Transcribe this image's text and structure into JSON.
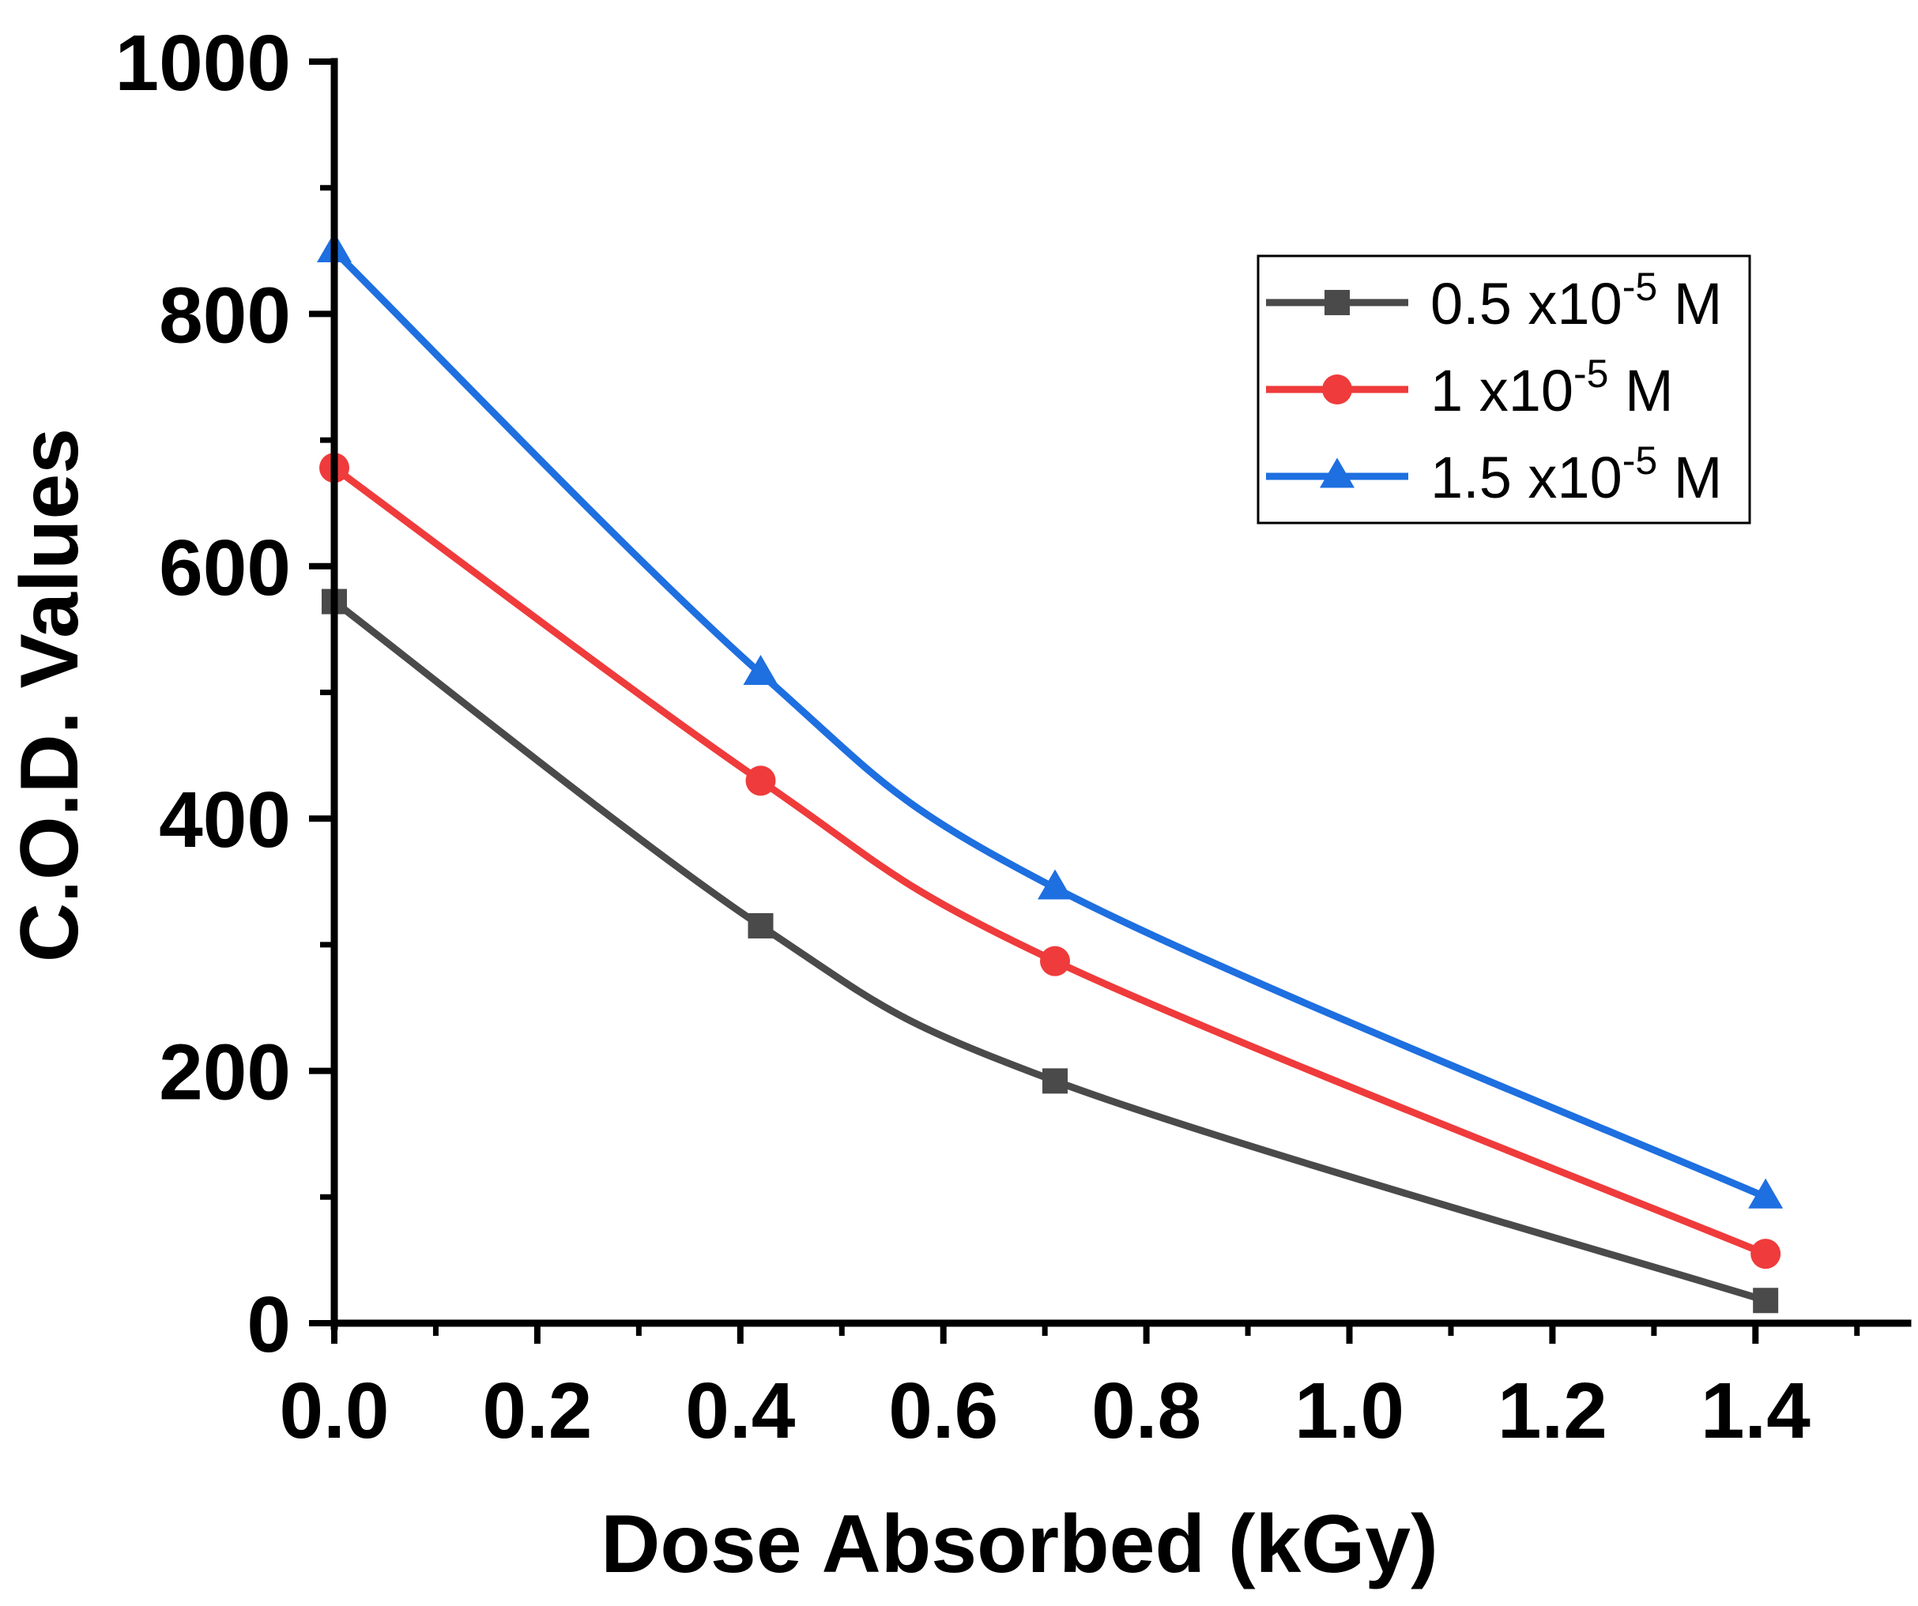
{
  "chart_data": {
    "type": "line",
    "title": "",
    "xlabel": "Dose Absorbed (kGy)",
    "ylabel": "C.O.D. Values",
    "xlim": [
      0,
      1.55
    ],
    "ylim": [
      0,
      1000
    ],
    "x_ticks": [
      0.0,
      0.2,
      0.4,
      0.6,
      0.8,
      1.0,
      1.2,
      1.4
    ],
    "x_tick_labels": [
      "0.0",
      "0.2",
      "0.4",
      "0.6",
      "0.8",
      "1.0",
      "1.2",
      "1.4"
    ],
    "y_ticks": [
      0,
      200,
      400,
      600,
      800,
      1000
    ],
    "y_tick_labels": [
      "0",
      "200",
      "400",
      "600",
      "800",
      "1000"
    ],
    "x_minor_step": 0.1,
    "y_minor_step": 100,
    "grid": false,
    "legend_position": "top-right",
    "series": [
      {
        "name": "0.5 x10-5 M",
        "legend_main": "0.5 x10",
        "legend_sup": "-5",
        "legend_unit": " M",
        "color": "#4a4a4a",
        "marker": "square",
        "x": [
          0.0,
          0.42,
          0.71,
          1.41
        ],
        "values": [
          572,
          315,
          192,
          18
        ]
      },
      {
        "name": "1 x10-5 M",
        "legend_main": "1 x10",
        "legend_sup": "-5",
        "legend_unit": " M",
        "color": "#ef3b3b",
        "marker": "circle",
        "x": [
          0.0,
          0.42,
          0.71,
          1.41
        ],
        "values": [
          678,
          430,
          287,
          55
        ]
      },
      {
        "name": "1.5 x10-5 M",
        "legend_main": "1.5 x10",
        "legend_sup": "-5",
        "legend_unit": " M",
        "color": "#1e6fe0",
        "marker": "triangle",
        "x": [
          0.0,
          0.42,
          0.71,
          1.41
        ],
        "values": [
          850,
          515,
          345,
          100
        ]
      }
    ]
  }
}
